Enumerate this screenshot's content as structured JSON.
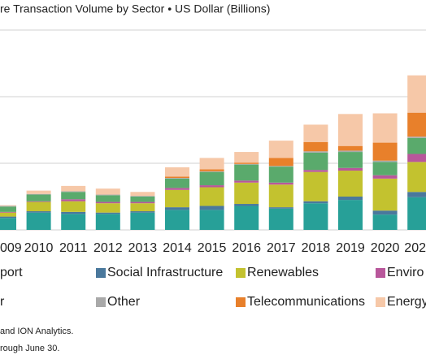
{
  "chart_data": {
    "type": "stacked-bar",
    "title": "re Transaction Volume by Sector • US Dollar (Billions)",
    "categories": [
      "009",
      "2010",
      "2011",
      "2012",
      "2013",
      "2014",
      "2015",
      "2016",
      "2017",
      "2018",
      "2019",
      "2020",
      "202"
    ],
    "series": [
      {
        "name": "port",
        "color": "#27a098",
        "values": [
          9,
          13,
          12,
          12,
          13,
          15,
          15,
          18,
          16,
          20,
          22.5,
          11.5,
          24.5
        ]
      },
      {
        "name": "Social Infrastructure",
        "color": "#4a789c",
        "values": [
          1,
          1,
          1.5,
          1,
          1,
          2,
          3,
          1.5,
          1,
          1.5,
          2.5,
          3,
          4
        ]
      },
      {
        "name": "Renewables",
        "color": "#c3c22f",
        "values": [
          3,
          7,
          8,
          7,
          6,
          13,
          14,
          16,
          17,
          22,
          19.5,
          24,
          22.5
        ]
      },
      {
        "name": "Enviro",
        "color": "#b8579b",
        "values": [
          0.5,
          0.5,
          1.5,
          1,
          1,
          1.5,
          1.5,
          1.5,
          1.5,
          1.5,
          2,
          2.5,
          6
        ]
      },
      {
        "name": "r",
        "color": "#5aaa6c",
        "values": [
          4,
          5,
          5.5,
          5,
          4,
          7,
          10,
          12,
          12,
          13,
          12,
          10,
          12
        ]
      },
      {
        "name": "Other",
        "color": "#a9a9a9",
        "values": [
          0.5,
          0.5,
          0.5,
          0.5,
          0.5,
          0.5,
          0.5,
          0.5,
          0.5,
          1,
          1,
          1,
          1
        ]
      },
      {
        "name": "Telecommunications",
        "color": "#e8802b",
        "values": [
          0,
          0,
          0,
          0,
          0,
          1,
          1.5,
          1,
          6,
          7,
          3.5,
          13.5,
          18
        ]
      },
      {
        "name": "Energy",
        "color": "#f6c8a8",
        "values": [
          0.5,
          2.5,
          4,
          4.5,
          3,
          7,
          8.5,
          8,
          13,
          13,
          24,
          22,
          28
        ]
      }
    ],
    "ylim": [
      0,
      150
    ],
    "yticks": [
      0,
      50,
      100,
      150
    ],
    "grid": true,
    "notes": [
      "and ION Analytics.",
      "rough June 30."
    ]
  }
}
